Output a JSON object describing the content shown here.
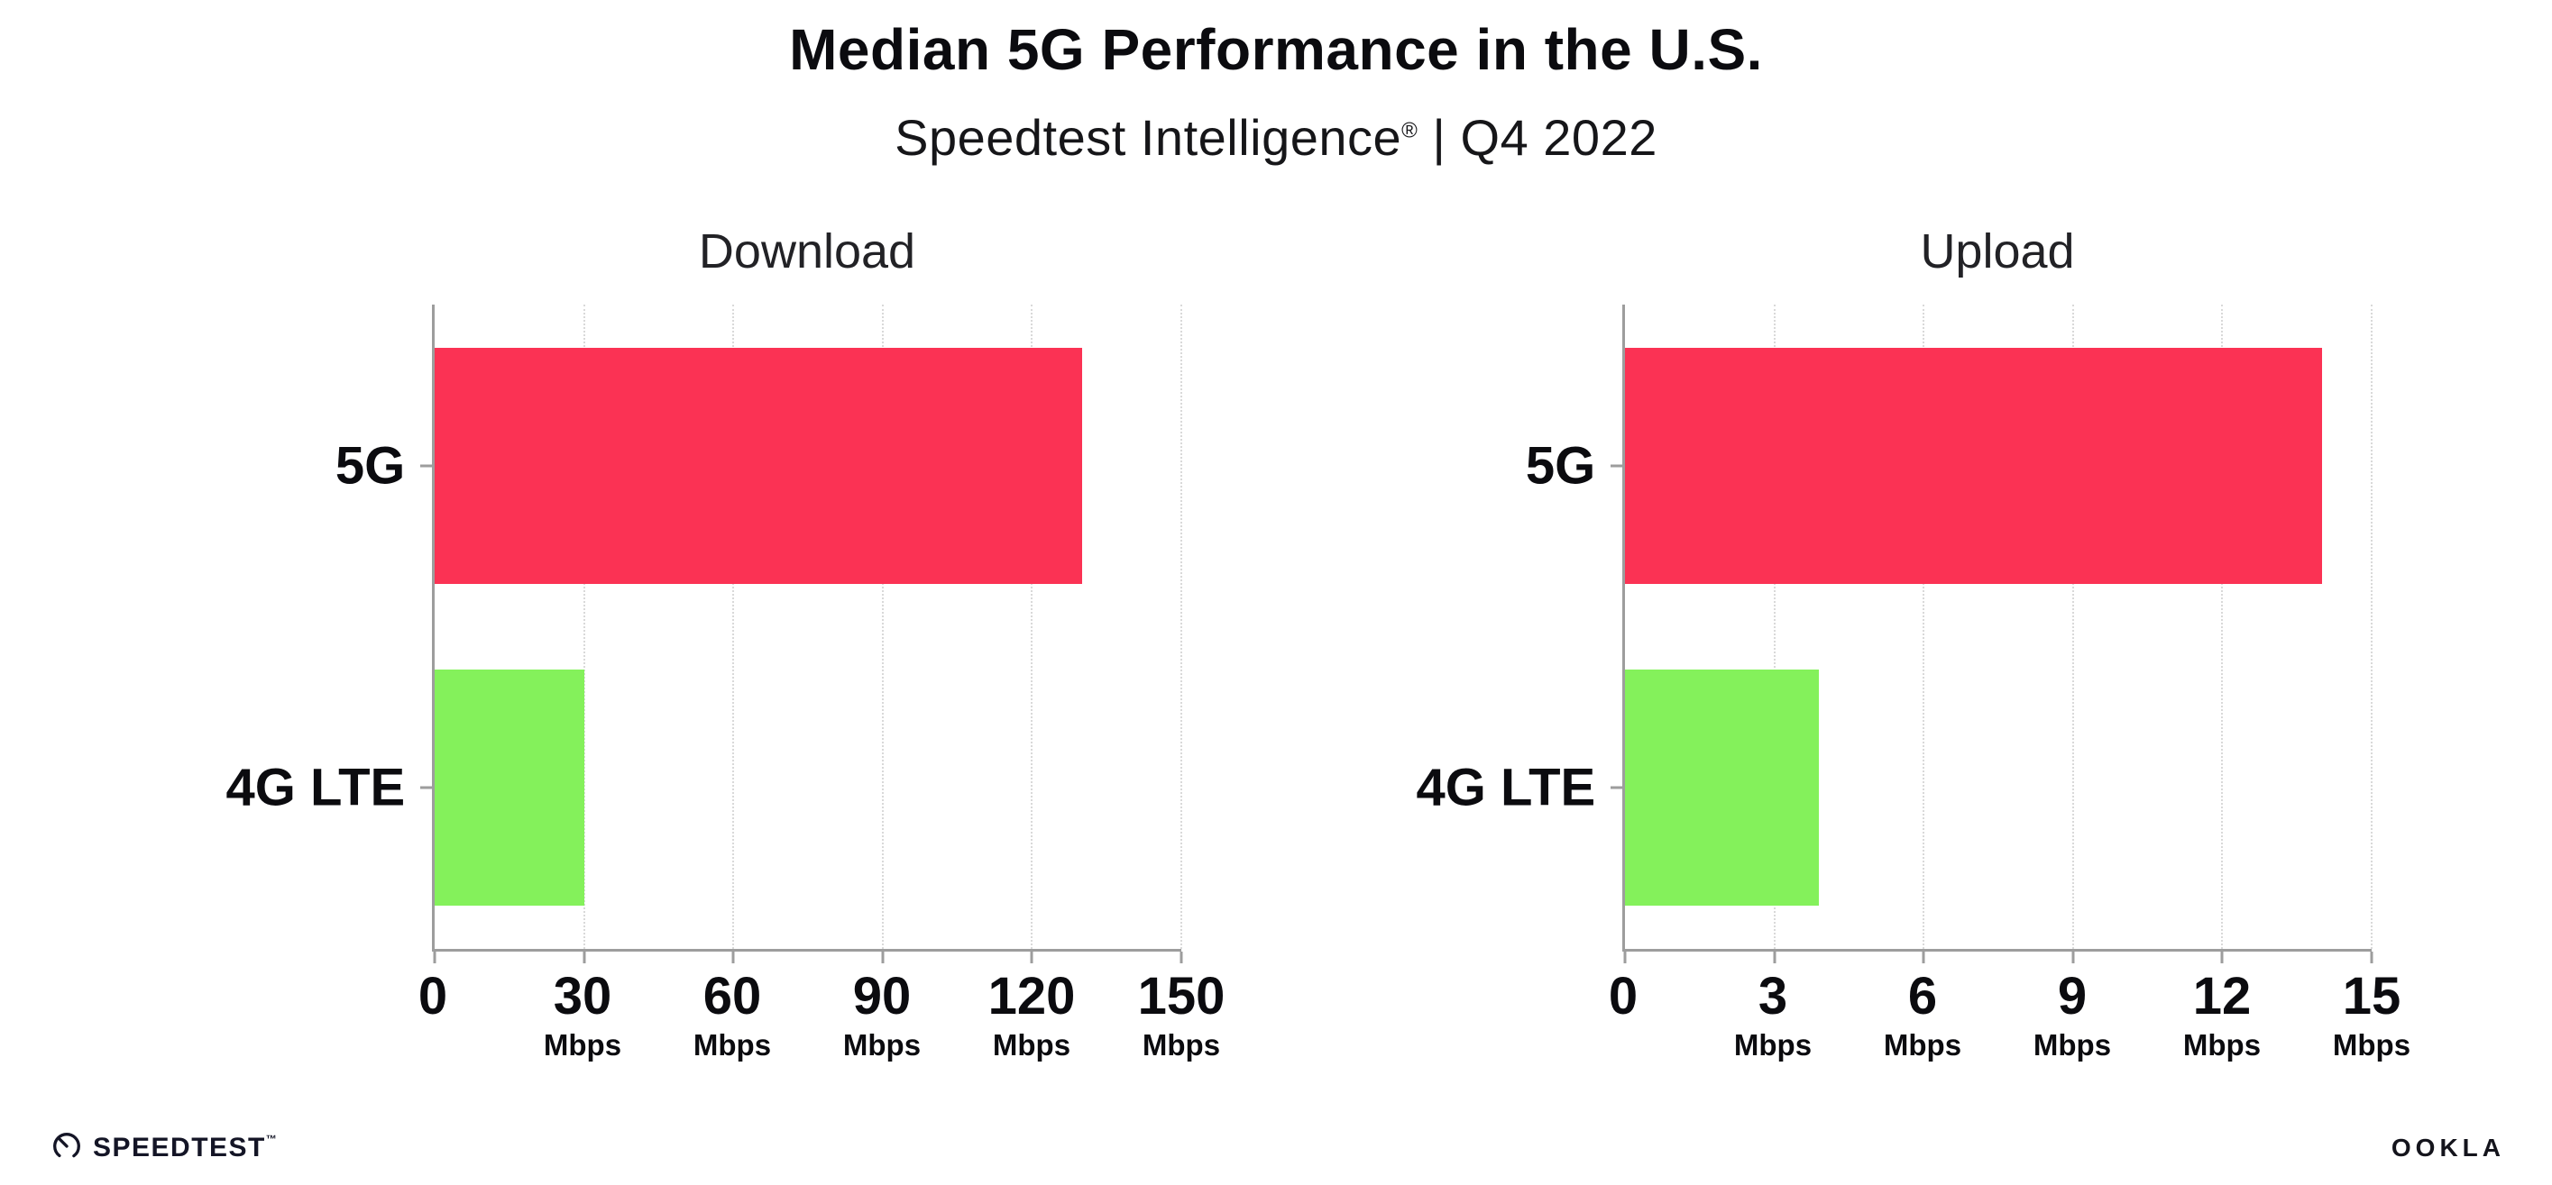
{
  "header": {
    "title": "Median 5G Performance in the U.S.",
    "subtitle_brand": "Speedtest Intelligence",
    "subtitle_reg": "®",
    "subtitle_rest": " | Q4 2022"
  },
  "chart_data": [
    {
      "type": "bar",
      "orientation": "horizontal",
      "title": "Download",
      "categories": [
        "5G",
        "4G LTE"
      ],
      "values": [
        130,
        30
      ],
      "unit": "Mbps",
      "xlim": [
        0,
        150
      ],
      "xticks": [
        0,
        30,
        60,
        90,
        120,
        150
      ],
      "bar_colors": [
        "#fb3254",
        "#84f15b"
      ],
      "grid": "dotted-vertical",
      "legend": "none"
    },
    {
      "type": "bar",
      "orientation": "horizontal",
      "title": "Upload",
      "categories": [
        "5G",
        "4G LTE"
      ],
      "values": [
        14,
        3.9
      ],
      "unit": "Mbps",
      "xlim": [
        0,
        15
      ],
      "xticks": [
        0,
        3,
        6,
        9,
        12,
        15
      ],
      "bar_colors": [
        "#fb3254",
        "#84f15b"
      ],
      "grid": "dotted-vertical",
      "legend": "none"
    }
  ],
  "footer": {
    "speedtest_label": "SPEEDTEST",
    "speedtest_tm": "™",
    "ookla_label": "OOKLA"
  },
  "colors": {
    "bar_5g": "#fb3254",
    "bar_4g_lte": "#84f15b",
    "axis": "#9d9d9d",
    "grid": "#d9d9d9",
    "text": "#0b0b0f"
  }
}
